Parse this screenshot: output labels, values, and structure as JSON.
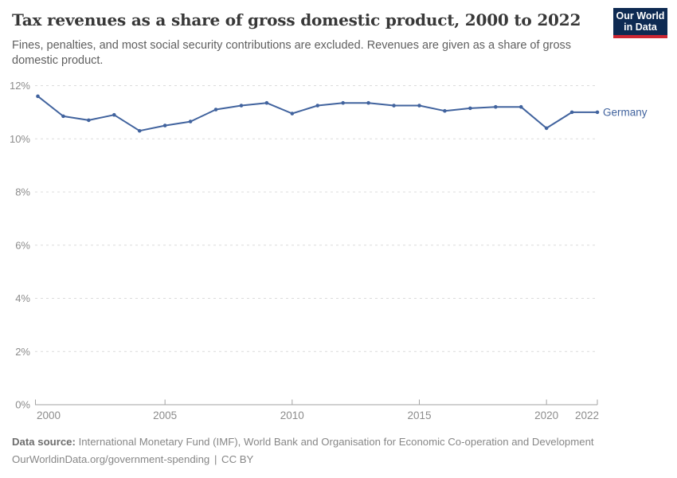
{
  "header": {
    "title": "Tax revenues as a share of gross domestic product, 2000 to 2022",
    "subtitle": "Fines, penalties, and most social security contributions are excluded. Revenues are given as a share of gross domestic product.",
    "logo": {
      "line1": "Our World",
      "line2": "in Data",
      "bg_color": "#0e2a52",
      "accent_color": "#cd2733"
    }
  },
  "chart_data": {
    "type": "line",
    "title": "Tax revenues as a share of gross domestic product, 2000 to 2022",
    "x": [
      2000,
      2001,
      2002,
      2003,
      2004,
      2005,
      2006,
      2007,
      2008,
      2009,
      2010,
      2011,
      2012,
      2013,
      2014,
      2015,
      2016,
      2017,
      2018,
      2019,
      2020,
      2021,
      2022
    ],
    "series": [
      {
        "name": "Germany",
        "color": "#41639e",
        "values": [
          11.6,
          10.85,
          10.7,
          10.9,
          10.3,
          10.5,
          10.65,
          11.1,
          11.25,
          11.35,
          10.95,
          11.25,
          11.35,
          11.35,
          11.25,
          11.25,
          11.05,
          11.15,
          11.2,
          11.2,
          10.4,
          11.0,
          11.0
        ]
      }
    ],
    "xlabel": "",
    "ylabel": "",
    "ylim": [
      0,
      12
    ],
    "yticks": [
      0,
      2,
      4,
      6,
      8,
      10,
      12
    ],
    "ytick_suffix": "%",
    "xticks": [
      2000,
      2005,
      2010,
      2015,
      2020,
      2022
    ],
    "grid": "horizontal dashed",
    "legend": "inline label at line end",
    "axis_color": "#a3a3a3",
    "gridline_color": "#dcdcdc",
    "tick_label_color": "#8c8c8c"
  },
  "footer": {
    "data_source_label": "Data source:",
    "data_source_text": "International Monetary Fund (IMF), World Bank and Organisation for Economic Co-operation and Development",
    "link_text": "OurWorldinData.org/government-spending",
    "separator": "|",
    "license": "CC BY"
  }
}
